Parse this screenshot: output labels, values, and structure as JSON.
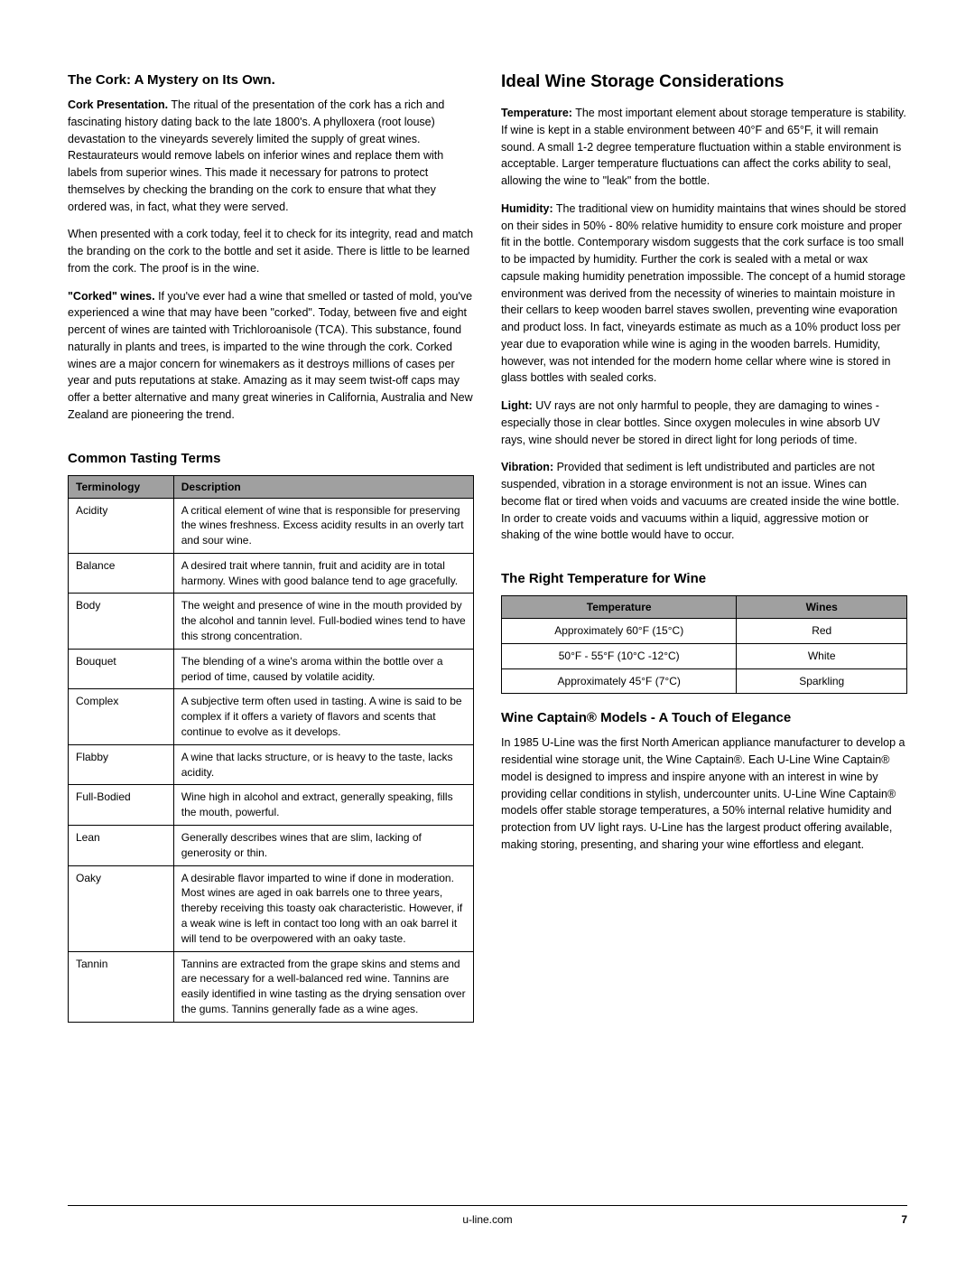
{
  "left": {
    "cork": {
      "heading": "The Cork: A Mystery on Its Own.",
      "p1_bold": "Cork Presentation.",
      "p1": " The ritual of the presentation of the cork has a rich and fascinating history dating back to the late 1800's. A phylloxera (root louse) devastation to the vineyards severely limited the supply of great wines. Restaurateurs would remove labels on inferior wines and replace them with labels from superior wines. This made it necessary for patrons to protect themselves by checking the branding on the cork to ensure that what they ordered was, in fact, what they were served.",
      "p2": "When presented with a cork today, feel it to check for its integrity, read and match the branding on the cork to the bottle and set it aside. There is little to be learned from the cork. The proof is in the wine.",
      "p3_bold": "\"Corked\" wines.",
      "p3": " If you've ever had a wine that smelled or tasted of mold, you've experienced a wine that may have been \"corked\". Today, between five and eight percent of wines are tainted with Trichloroanisole (TCA). This substance, found naturally in plants and trees, is imparted to the wine through the cork. Corked wines are a major concern for winemakers as it destroys millions of cases per year and puts reputations at stake. Amazing as it may seem twist-off caps may offer a better alternative and many great wineries in California, Australia and New Zealand are pioneering the trend."
    },
    "terms": {
      "heading": "Common Tasting Terms",
      "col1": "Terminology",
      "col2": "Description",
      "rows": [
        {
          "term": "Acidity",
          "desc": "A critical element of wine that is responsible for preserving the wines freshness. Excess acidity results in an overly tart and sour wine."
        },
        {
          "term": "Balance",
          "desc": "A desired trait where tannin, fruit and acidity are in total harmony. Wines with good balance tend to age gracefully."
        },
        {
          "term": "Body",
          "desc": "The weight and presence of wine in the mouth provided by the alcohol and tannin level. Full-bodied wines tend to have this strong concentration."
        },
        {
          "term": "Bouquet",
          "desc": "The blending of a wine's aroma within the bottle over a period of time, caused by volatile acidity."
        },
        {
          "term": "Complex",
          "desc": "A subjective term often used in tasting. A wine is said to be complex if it offers a variety of flavors and scents that continue to evolve as it develops."
        },
        {
          "term": "Flabby",
          "desc": "A wine that lacks structure, or is heavy to the taste, lacks acidity."
        },
        {
          "term": "Full-Bodied",
          "desc": "Wine high in alcohol and extract, generally speaking, fills the mouth, powerful."
        },
        {
          "term": "Lean",
          "desc": "Generally describes wines that are slim, lacking of generosity or thin."
        },
        {
          "term": "Oaky",
          "desc": "A desirable flavor imparted to wine if done in moderation. Most wines are aged in oak barrels one to three years, thereby receiving this toasty oak characteristic. However, if a weak wine is left in contact too long with an oak barrel it will tend to be overpowered with an oaky taste."
        },
        {
          "term": "Tannin",
          "desc": "Tannins are extracted from the grape skins and stems and are necessary for a well-balanced red wine. Tannins are easily identified in wine tasting as the drying sensation over the gums. Tannins generally fade as a wine ages."
        }
      ]
    }
  },
  "right": {
    "storage": {
      "heading": "Ideal Wine Storage Considerations",
      "p1_bold": "Temperature:",
      "p1": " The most important element about storage temperature is stability. If wine is kept in a stable environment between 40°F and 65°F, it will remain sound. A small 1-2 degree temperature fluctuation within a stable environment is acceptable. Larger temperature fluctuations can affect the corks ability to seal, allowing the wine to \"leak\" from the bottle.",
      "p2_bold": "Humidity:",
      "p2": " The traditional view on humidity maintains that wines should be stored on their sides in 50% - 80% relative humidity to ensure cork moisture and proper fit in the bottle. Contemporary wisdom suggests that the cork surface is too small to be impacted by humidity. Further the cork is sealed with a metal or wax capsule making humidity penetration impossible. The concept of a humid storage environment was derived from the necessity of wineries to maintain moisture in their cellars to keep wooden barrel staves swollen, preventing wine evaporation and product loss. In fact, vineyards estimate as much as a 10% product loss per year due to evaporation while wine is aging in the wooden barrels. Humidity, however, was not intended for the modern home cellar where wine is stored in glass bottles with sealed corks.",
      "p3_bold": "Light:",
      "p3": " UV rays are not only harmful to people, they are damaging to wines - especially those in clear bottles. Since oxygen molecules in wine absorb UV rays, wine should never be stored in direct light for long periods of time.",
      "p4_bold": "Vibration:",
      "p4": " Provided that sediment is left undistributed and particles are not suspended, vibration in a storage environment is not an issue. Wines can become flat or tired when voids and vacuums are created inside the wine bottle. In order to create voids and vacuums within a liquid, aggressive motion or shaking of the wine bottle would have to occur."
    },
    "temp": {
      "heading": "The Right Temperature for Wine",
      "col1": "Temperature",
      "col2": "Wines",
      "rows": [
        {
          "temp": "Approximately 60°F (15°C)",
          "wine": "Red"
        },
        {
          "temp": "50°F - 55°F (10°C -12°C)",
          "wine": "White"
        },
        {
          "temp": "Approximately 45°F (7°C)",
          "wine": "Sparkling"
        }
      ]
    },
    "captain": {
      "heading": "Wine Captain® Models - A Touch of Elegance",
      "p1": "In 1985 U-Line was the first North American appliance manufacturer to develop a residential wine storage unit, the Wine Captain®. Each U-Line Wine Captain® model is designed to impress and inspire anyone with an interest in wine by providing cellar conditions in stylish, undercounter units. U-Line Wine Captain® models offer stable storage temperatures, a 50% internal relative humidity and protection from UV light rays. U-Line has the largest product offering available, making storing, presenting, and sharing your wine effortless and elegant."
    }
  },
  "footer": {
    "site": "u-line.com",
    "page": "7"
  }
}
